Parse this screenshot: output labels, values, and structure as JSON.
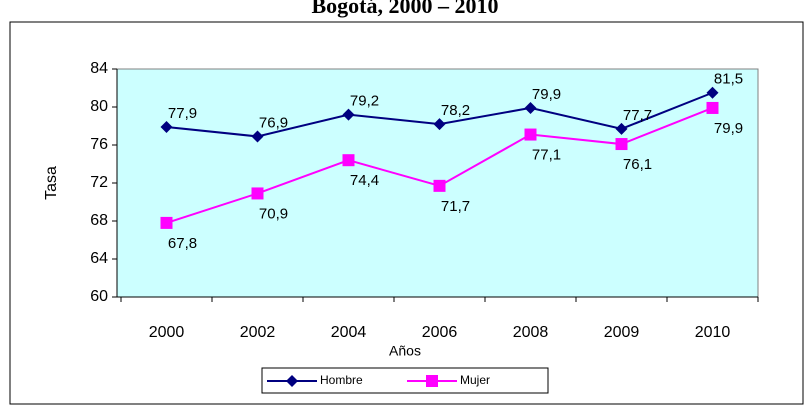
{
  "chart_data": {
    "type": "line",
    "title": "Bogotá, 2000 – 2010",
    "categories": [
      "2000",
      "2002",
      "2004",
      "2006",
      "2008",
      "2009",
      "2010"
    ],
    "x_label": "Años",
    "y_label": "Tasa",
    "series": [
      {
        "name": "Hombre",
        "color": "#000080",
        "marker": "diamond",
        "values": [
          77.9,
          76.9,
          79.2,
          78.2,
          79.9,
          77.7,
          81.5
        ],
        "value_labels": [
          "77,9",
          "76,9",
          "79,2",
          "78,2",
          "79,9",
          "77,7",
          "81,5"
        ]
      },
      {
        "name": "Mujer",
        "color": "#ff00ff",
        "marker": "square",
        "values": [
          67.8,
          70.9,
          74.4,
          71.7,
          77.1,
          76.1,
          79.9
        ],
        "value_labels": [
          "67,8",
          "70,9",
          "74,4",
          "71,7",
          "77,1",
          "76,1",
          "79,9"
        ]
      }
    ],
    "ylim": [
      60,
      84
    ],
    "yticks": [
      60,
      64,
      68,
      72,
      76,
      80,
      84
    ],
    "plot_background": "#ccffff",
    "legend": "bottom"
  }
}
